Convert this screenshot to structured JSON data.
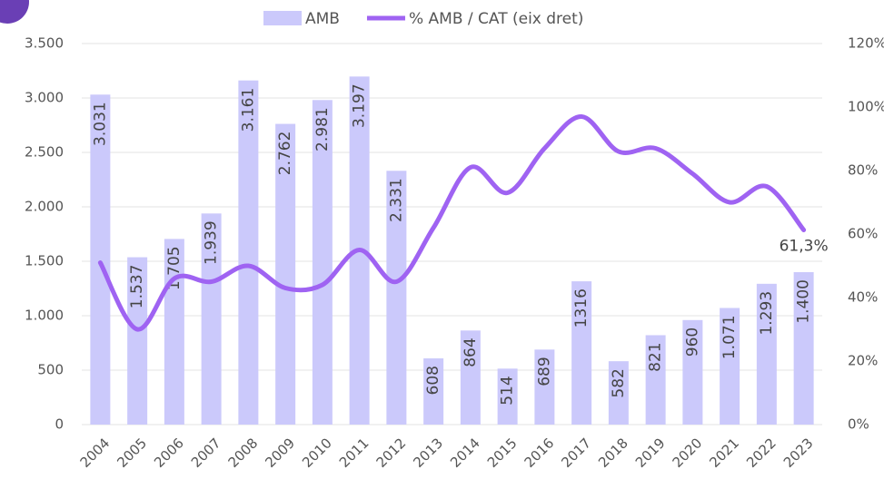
{
  "chart_data": {
    "type": "bar_line",
    "categories": [
      "2004",
      "2005",
      "2006",
      "2007",
      "2008",
      "2009",
      "2010",
      "2011",
      "2012",
      "2013",
      "2014",
      "2015",
      "2016",
      "2017",
      "2018",
      "2019",
      "2020",
      "2021",
      "2022",
      "2023"
    ],
    "series": [
      {
        "name": "AMB",
        "type": "bar",
        "color": "#cbc9fb",
        "values": [
          3031,
          1537,
          1705,
          1939,
          3161,
          2762,
          2981,
          3197,
          2331,
          608,
          864,
          514,
          689,
          1316,
          582,
          821,
          960,
          1071,
          1293,
          1400
        ],
        "value_labels": [
          "3.031",
          "1.537",
          "1.705",
          "1.939",
          "3.161",
          "2.762",
          "2.981",
          "3.197",
          "2.331",
          "608",
          "864",
          "514",
          "689",
          "1316",
          "582",
          "821",
          "960",
          "1.071",
          "1.293",
          "1.400"
        ]
      },
      {
        "name": "% AMB / CAT (eix dret)",
        "type": "line",
        "axis": "y2",
        "color": "#9f63f2",
        "values": [
          51,
          30,
          46,
          45,
          50,
          43,
          44,
          55,
          45,
          62,
          81,
          73,
          87,
          97,
          86,
          87,
          79,
          70,
          75,
          61.3
        ],
        "value_labels": [
          null,
          null,
          null,
          null,
          null,
          null,
          null,
          null,
          null,
          null,
          null,
          null,
          null,
          null,
          null,
          null,
          null,
          null,
          null,
          "61,3%"
        ]
      }
    ],
    "ylim": [
      0,
      3500
    ],
    "yticks": [
      0,
      500,
      {
        "value": 1000,
        "label": "1.000"
      },
      {
        "value": 1500,
        "label": "1.500"
      },
      {
        "value": 2000,
        "label": "2.000"
      },
      {
        "value": 2500,
        "label": "2.500"
      },
      {
        "value": 3000,
        "label": "3.000"
      },
      {
        "value": 3500,
        "label": "3.500"
      }
    ],
    "y2lim": [
      0,
      120
    ],
    "y2ticks": [
      {
        "value": 0,
        "label": "0%"
      },
      {
        "value": 20,
        "label": "20%"
      },
      {
        "value": 40,
        "label": "40%"
      },
      {
        "value": 60,
        "label": "60%"
      },
      {
        "value": 80,
        "label": "80%"
      },
      {
        "value": 100,
        "label": "100%"
      },
      {
        "value": 120,
        "label": "120%"
      }
    ],
    "grid": true,
    "legend": "top"
  }
}
